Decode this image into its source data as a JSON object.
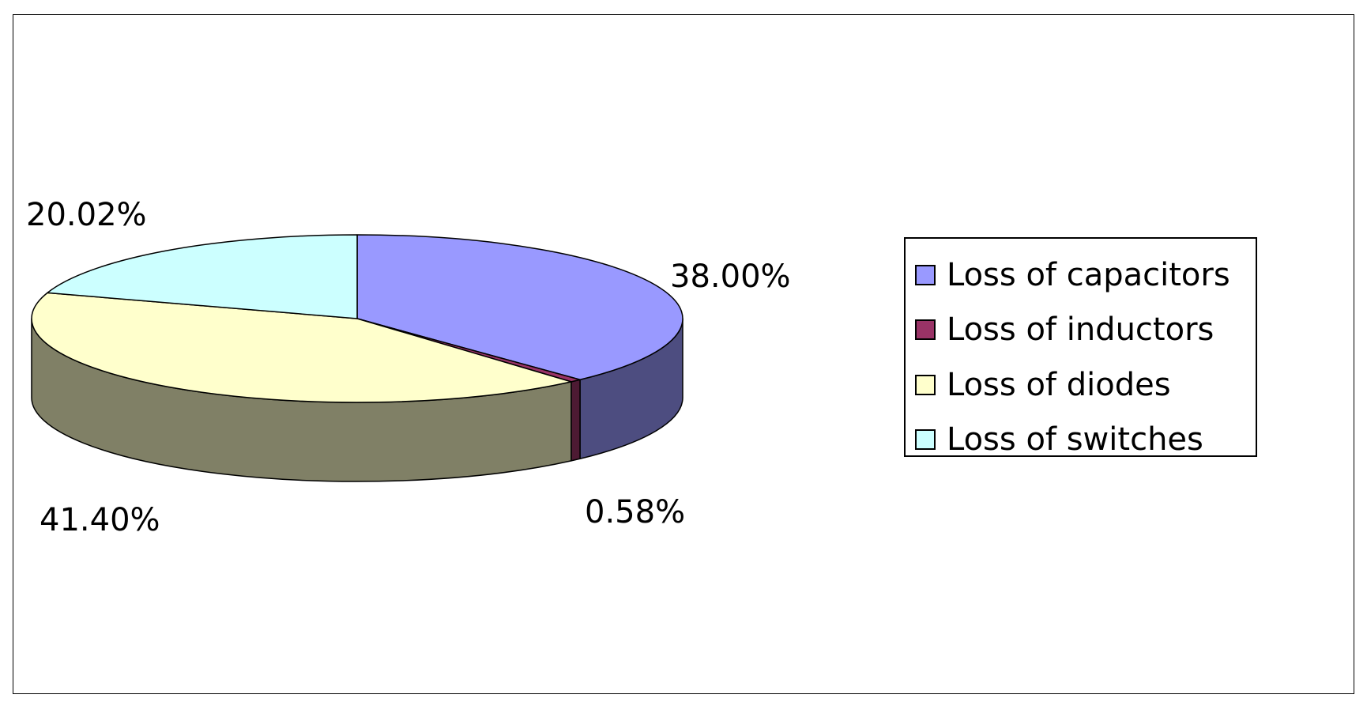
{
  "chart_data": {
    "type": "pie",
    "style": "3d",
    "categories": [
      "Loss of capacitors",
      "Loss of inductors",
      "Loss of diodes",
      "Loss of switches"
    ],
    "values": [
      38.0,
      0.58,
      41.4,
      20.02
    ],
    "unit": "%",
    "data_labels": [
      "38.00%",
      "0.58%",
      "41.40%",
      "20.02%"
    ],
    "colors": [
      "#9999FF",
      "#993366",
      "#FFFFCC",
      "#CCFFFF"
    ],
    "side_colors": [
      "#4D4D80",
      "#4D1A33",
      "#808066",
      "#668080"
    ],
    "legend": {
      "position": "right",
      "entries": [
        "Loss of capacitors",
        "Loss of inductors",
        "Loss of diodes",
        "Loss of switches"
      ]
    }
  }
}
